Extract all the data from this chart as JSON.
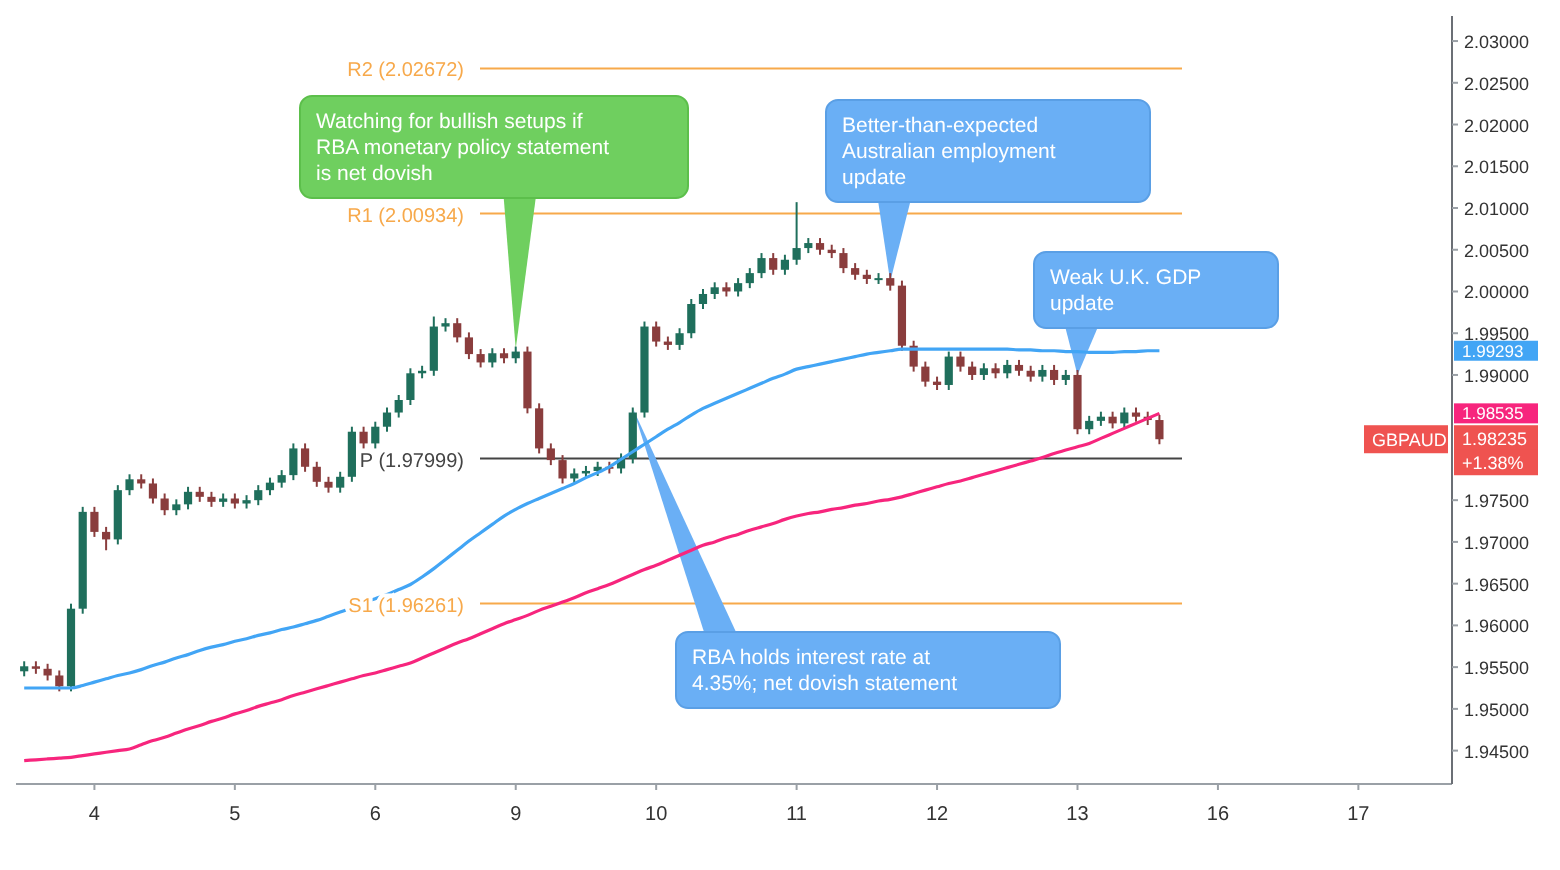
{
  "chart_data": {
    "type": "candlestick",
    "categories": [
      null,
      null,
      null,
      null,
      null,
      null,
      "4",
      null,
      null,
      null,
      null,
      null,
      null,
      null,
      null,
      null,
      null,
      null,
      "5",
      null,
      null,
      null,
      null,
      null,
      null,
      null,
      null,
      null,
      null,
      null,
      "6",
      null,
      null,
      null,
      null,
      null,
      null,
      null,
      null,
      null,
      null,
      null,
      "9",
      null,
      null,
      null,
      null,
      null,
      null,
      null,
      null,
      null,
      null,
      null,
      "10",
      null,
      null,
      null,
      null,
      null,
      null,
      null,
      null,
      null,
      null,
      null,
      "11",
      null,
      null,
      null,
      null,
      null,
      null,
      null,
      null,
      null,
      null,
      null,
      "12",
      null,
      null,
      null,
      null,
      null,
      null,
      null,
      null,
      null,
      null,
      null,
      "13",
      null,
      null,
      null,
      null,
      null,
      null,
      null,
      null,
      null,
      null,
      null,
      "16",
      null,
      null,
      null,
      null,
      null,
      null,
      null,
      null,
      null,
      null,
      null,
      "17",
      null,
      null,
      null,
      null,
      null,
      null,
      null
    ],
    "ylim": [
      1.941,
      2.033
    ],
    "yticks": [
      {
        "value": 1.945,
        "label": "1.94500"
      },
      {
        "value": 1.95,
        "label": "1.95000"
      },
      {
        "value": 1.955,
        "label": "1.95500"
      },
      {
        "value": 1.96,
        "label": "1.96000"
      },
      {
        "value": 1.965,
        "label": "1.96500"
      },
      {
        "value": 1.97,
        "label": "1.97000"
      },
      {
        "value": 1.975,
        "label": "1.97500"
      },
      {
        "value": 1.99,
        "label": "1.99000"
      },
      {
        "value": 1.995,
        "label": "1.99500"
      },
      {
        "value": 2.0,
        "label": "2.00000"
      },
      {
        "value": 2.005,
        "label": "2.00500"
      },
      {
        "value": 2.01,
        "label": "2.01000"
      },
      {
        "value": 2.015,
        "label": "2.01500"
      },
      {
        "value": 2.02,
        "label": "2.02000"
      },
      {
        "value": 2.025,
        "label": "2.02500"
      },
      {
        "value": 2.03,
        "label": "2.03000"
      }
    ],
    "grid": false,
    "series": [
      {
        "colors": [
          "#1f6f5c",
          "#8a3d3d",
          "#8a3d3d",
          "#8a3d3d",
          "#1f6f5c",
          "#1f6f5c",
          "#8a3d3d",
          "#8a3d3d",
          "#1f6f5c",
          "#1f6f5c",
          "#8a3d3d",
          "#8a3d3d",
          "#8a3d3d",
          "#1f6f5c",
          "#1f6f5c",
          "#8a3d3d",
          "#8a3d3d",
          "#1f6f5c",
          "#8a3d3d",
          "#1f6f5c",
          "#1f6f5c",
          "#1f6f5c",
          "#1f6f5c",
          "#1f6f5c",
          "#8a3d3d",
          "#8a3d3d",
          "#8a3d3d",
          "#1f6f5c",
          "#1f6f5c",
          "#8a3d3d",
          "#1f6f5c",
          "#1f6f5c",
          "#1f6f5c",
          "#1f6f5c",
          "#1f6f5c",
          "#1f6f5c",
          "#1f6f5c",
          "#8a3d3d",
          "#8a3d3d",
          "#8a3d3d",
          "#1f6f5c",
          "#8a3d3d",
          "#1f6f5c",
          "#8a3d3d",
          "#8a3d3d",
          "#8a3d3d",
          "#8a3d3d",
          "#1f6f5c",
          "#1f6f5c",
          "#1f6f5c",
          "#8a3d3d",
          "#1f6f5c",
          "#1f6f5c",
          "#1f6f5c",
          "#8a3d3d",
          "#8a3d3d",
          "#1f6f5c",
          "#1f6f5c",
          "#1f6f5c",
          "#1f6f5c",
          "#8a3d3d",
          "#1f6f5c",
          "#1f6f5c",
          "#1f6f5c",
          "#8a3d3d",
          "#1f6f5c",
          "#1f6f5c",
          "#1f6f5c",
          "#8a3d3d",
          "#8a3d3d",
          "#8a3d3d",
          "#8a3d3d",
          "#8a3d3d",
          "#1f6f5c",
          "#8a3d3d",
          "#8a3d3d",
          "#8a3d3d",
          "#8a3d3d",
          "#8a3d3d",
          "#1f6f5c",
          "#8a3d3d",
          "#8a3d3d",
          "#1f6f5c",
          "#8a3d3d",
          "#1f6f5c",
          "#8a3d3d",
          "#8a3d3d",
          "#1f6f5c",
          "#8a3d3d",
          "#1f6f5c",
          "#8a3d3d",
          "#1f6f5c",
          "#1f6f5c",
          "#8a3d3d",
          "#1f6f5c",
          "#8a3d3d",
          "#8a3d3d",
          "#8a3d3d",
          null,
          null,
          null,
          null,
          null,
          null,
          null,
          null,
          null,
          null,
          null,
          null,
          null,
          null,
          null,
          null,
          null,
          null,
          null,
          null,
          null,
          null,
          null,
          null
        ],
        "ohlc": [
          [
            1.9545,
            1.9557,
            1.9539,
            1.9551
          ],
          [
            1.9551,
            1.9557,
            1.9542,
            1.9548
          ],
          [
            1.9548,
            1.9554,
            1.9534,
            1.954
          ],
          [
            1.954,
            1.9546,
            1.9521,
            1.9527
          ],
          [
            1.9527,
            1.9626,
            1.9521,
            1.962
          ],
          [
            1.962,
            1.9742,
            1.9614,
            1.9736
          ],
          [
            1.9736,
            1.9742,
            1.9706,
            1.9712
          ],
          [
            1.9712,
            1.9718,
            1.969,
            1.9703
          ],
          [
            1.9703,
            1.9768,
            1.9697,
            1.9762
          ],
          [
            1.9762,
            1.9781,
            1.9756,
            1.9775
          ],
          [
            1.9775,
            1.9781,
            1.9764,
            1.977
          ],
          [
            1.977,
            1.9776,
            1.9746,
            1.9752
          ],
          [
            1.9752,
            1.9758,
            1.9732,
            1.9738
          ],
          [
            1.9738,
            1.9751,
            1.9732,
            1.9745
          ],
          [
            1.9745,
            1.9766,
            1.9739,
            1.976
          ],
          [
            1.976,
            1.9766,
            1.9748,
            1.9754
          ],
          [
            1.9754,
            1.976,
            1.9742,
            1.9748
          ],
          [
            1.9748,
            1.9758,
            1.9742,
            1.9752
          ],
          [
            1.9752,
            1.9758,
            1.974,
            1.9746
          ],
          [
            1.9746,
            1.9756,
            1.974,
            1.975
          ],
          [
            1.975,
            1.9768,
            1.9744,
            1.9762
          ],
          [
            1.9762,
            1.9777,
            1.9756,
            1.9771
          ],
          [
            1.9771,
            1.9786,
            1.9765,
            1.978
          ],
          [
            1.978,
            1.9818,
            1.9774,
            1.9812
          ],
          [
            1.9812,
            1.9818,
            1.9784,
            1.979
          ],
          [
            1.979,
            1.9796,
            1.9766,
            1.9772
          ],
          [
            1.9772,
            1.9778,
            1.9759,
            1.9765
          ],
          [
            1.9765,
            1.9784,
            1.9759,
            1.9778
          ],
          [
            1.9778,
            1.9838,
            1.9772,
            1.9832
          ],
          [
            1.9832,
            1.9838,
            1.9812,
            1.9818
          ],
          [
            1.9818,
            1.9844,
            1.9812,
            1.9838
          ],
          [
            1.9838,
            1.9861,
            1.9832,
            1.9855
          ],
          [
            1.9855,
            1.9876,
            1.9849,
            1.987
          ],
          [
            1.987,
            1.9908,
            1.9864,
            1.9902
          ],
          [
            1.9902,
            1.9911,
            1.9896,
            1.9905
          ],
          [
            1.9905,
            1.997,
            1.9899,
            1.9958
          ],
          [
            1.9958,
            1.9968,
            1.9952,
            1.9962
          ],
          [
            1.9962,
            1.9968,
            1.9939,
            1.9945
          ],
          [
            1.9945,
            1.9951,
            1.9919,
            1.9925
          ],
          [
            1.9925,
            1.9931,
            1.9909,
            1.9915
          ],
          [
            1.9915,
            1.9932,
            1.9909,
            1.9926
          ],
          [
            1.9926,
            1.9932,
            1.9914,
            1.992
          ],
          [
            1.992,
            1.9934,
            1.9914,
            1.9928
          ],
          [
            1.9928,
            1.9934,
            1.9854,
            1.986
          ],
          [
            1.986,
            1.9866,
            1.9806,
            1.9812
          ],
          [
            1.9812,
            1.9818,
            1.9792,
            1.9798
          ],
          [
            1.9798,
            1.9804,
            1.977,
            1.9776
          ],
          [
            1.9776,
            1.9788,
            1.977,
            1.9782
          ],
          [
            1.9782,
            1.9791,
            1.9776,
            1.9785
          ],
          [
            1.9785,
            1.9796,
            1.9779,
            1.979
          ],
          [
            1.979,
            1.9796,
            1.9782,
            1.9788
          ],
          [
            1.9788,
            1.9806,
            1.9782,
            1.98
          ],
          [
            1.98,
            1.9861,
            1.9794,
            1.9855
          ],
          [
            1.9855,
            1.9964,
            1.9849,
            1.9958
          ],
          [
            1.9958,
            1.9964,
            1.9934,
            1.994
          ],
          [
            1.994,
            1.9946,
            1.993,
            1.9936
          ],
          [
            1.9936,
            1.9956,
            1.993,
            1.995
          ],
          [
            1.995,
            1.9991,
            1.9944,
            1.9985
          ],
          [
            1.9985,
            2.0003,
            1.9979,
            1.9997
          ],
          [
            1.9997,
            2.0011,
            1.9991,
            2.0005
          ],
          [
            2.0005,
            2.0011,
            1.9994,
            2.0
          ],
          [
            2.0,
            2.0016,
            1.9994,
            2.001
          ],
          [
            2.001,
            2.0028,
            2.0004,
            2.0022
          ],
          [
            2.0022,
            2.0046,
            2.0016,
            2.004
          ],
          [
            2.004,
            2.0046,
            2.002,
            2.0026
          ],
          [
            2.0026,
            2.0044,
            2.002,
            2.0038
          ],
          [
            2.0038,
            2.0107,
            2.0032,
            2.0052
          ],
          [
            2.0052,
            2.0064,
            2.0046,
            2.0058
          ],
          [
            2.0058,
            2.0064,
            2.0044,
            2.005
          ],
          [
            2.005,
            2.0056,
            2.004,
            2.0046
          ],
          [
            2.0046,
            2.0052,
            2.0022,
            2.0028
          ],
          [
            2.0028,
            2.0034,
            2.0014,
            2.002
          ],
          [
            2.002,
            2.0026,
            2.0009,
            2.0015
          ],
          [
            2.0015,
            2.0022,
            2.0009,
            2.0016
          ],
          [
            2.0016,
            2.0022,
            2.0001,
            2.0007
          ],
          [
            2.0007,
            2.0013,
            1.9929,
            1.9935
          ],
          [
            1.9935,
            1.9941,
            1.9904,
            1.991
          ],
          [
            1.991,
            1.9916,
            1.9886,
            1.9892
          ],
          [
            1.9892,
            1.9898,
            1.9882,
            1.9888
          ],
          [
            1.9888,
            1.9928,
            1.9882,
            1.9922
          ],
          [
            1.9922,
            1.9928,
            1.9904,
            1.991
          ],
          [
            1.991,
            1.9916,
            1.9894,
            1.99
          ],
          [
            1.99,
            1.9914,
            1.9894,
            1.9908
          ],
          [
            1.9908,
            1.9914,
            1.9896,
            1.9902
          ],
          [
            1.9902,
            1.9918,
            1.9896,
            1.9912
          ],
          [
            1.9912,
            1.9918,
            1.9899,
            1.9905
          ],
          [
            1.9905,
            1.9911,
            1.9892,
            1.9898
          ],
          [
            1.9898,
            1.9912,
            1.9892,
            1.9906
          ],
          [
            1.9906,
            1.9912,
            1.9888,
            1.9894
          ],
          [
            1.9894,
            1.9906,
            1.9888,
            1.99
          ],
          [
            1.99,
            1.9906,
            1.9829,
            1.9835
          ],
          [
            1.9835,
            1.9851,
            1.9829,
            1.9845
          ],
          [
            1.9845,
            1.9856,
            1.9839,
            1.985
          ],
          [
            1.985,
            1.9856,
            1.9836,
            1.9842
          ],
          [
            1.9842,
            1.9861,
            1.9836,
            1.9855
          ],
          [
            1.9855,
            1.9861,
            1.9844,
            1.985
          ],
          [
            1.985,
            1.9856,
            1.984,
            1.9846
          ],
          [
            1.9846,
            1.9852,
            1.9817,
            1.9823
          ],
          null,
          null,
          null,
          null,
          null,
          null,
          null,
          null,
          null,
          null,
          null,
          null,
          null,
          null,
          null,
          null,
          null,
          null,
          null,
          null,
          null,
          null,
          null,
          null
        ]
      },
      {
        "type": "line",
        "color": "#42a5f5",
        "values": [
          1.9525,
          1.9525,
          1.9525,
          1.9525,
          1.9525,
          1.9528,
          1.9532,
          1.9536,
          1.954,
          1.9543,
          1.9547,
          1.9552,
          1.9556,
          1.9561,
          1.9565,
          1.957,
          1.9574,
          1.9577,
          1.9581,
          1.9584,
          1.9588,
          1.9591,
          1.9595,
          1.9598,
          1.9602,
          1.9606,
          1.9611,
          1.9616,
          1.9621,
          1.9627,
          1.9632,
          1.9637,
          1.9643,
          1.9649,
          1.9658,
          1.9668,
          1.9679,
          1.969,
          1.9701,
          1.9711,
          1.9721,
          1.9731,
          1.9739,
          1.9746,
          1.9752,
          1.9758,
          1.9764,
          1.977,
          1.9777,
          1.9783,
          1.979,
          1.9799,
          1.9808,
          1.9817,
          1.9826,
          1.9835,
          1.9843,
          1.9852,
          1.986,
          1.9866,
          1.9872,
          1.9878,
          1.9884,
          1.989,
          1.9896,
          1.9901,
          1.9907,
          1.991,
          1.9913,
          1.9916,
          1.9919,
          1.9922,
          1.9925,
          1.9927,
          1.9929,
          1.9931,
          1.9931,
          1.9931,
          1.9931,
          1.9931,
          1.9931,
          1.9931,
          1.9931,
          1.9931,
          1.9931,
          1.993,
          1.993,
          1.9929,
          1.9929,
          1.9928,
          1.9928,
          1.9927,
          1.9927,
          1.9927,
          1.9928,
          1.9928,
          1.9929,
          1.9929,
          null,
          null,
          null,
          null,
          null,
          null,
          null,
          null,
          null,
          null,
          null,
          null,
          null,
          null,
          null,
          null,
          null,
          null,
          null,
          null,
          null,
          null,
          null,
          null
        ]
      },
      {
        "type": "line",
        "color": "#f7257d",
        "values": [
          1.9438,
          1.9439,
          1.944,
          1.9441,
          1.9442,
          1.9444,
          1.9446,
          1.9448,
          1.945,
          1.9452,
          1.9457,
          1.9462,
          1.9466,
          1.9471,
          1.9476,
          1.948,
          1.9485,
          1.9489,
          1.9494,
          1.9498,
          1.9503,
          1.9507,
          1.9511,
          1.9516,
          1.952,
          1.9524,
          1.9528,
          1.9532,
          1.9536,
          1.954,
          1.9543,
          1.9547,
          1.9551,
          1.9555,
          1.9561,
          1.9567,
          1.9573,
          1.9579,
          1.9584,
          1.959,
          1.9596,
          1.9602,
          1.9607,
          1.9612,
          1.9618,
          1.9623,
          1.9628,
          1.9633,
          1.9639,
          1.9644,
          1.9649,
          1.9655,
          1.9661,
          1.9667,
          1.9672,
          1.9678,
          1.9684,
          1.969,
          1.9696,
          1.97,
          1.9705,
          1.9709,
          1.9714,
          1.9718,
          1.9722,
          1.9727,
          1.9731,
          1.9734,
          1.9736,
          1.9739,
          1.9741,
          1.9744,
          1.9746,
          1.9749,
          1.9751,
          1.9754,
          1.9758,
          1.9762,
          1.9766,
          1.977,
          1.9773,
          1.9777,
          1.9781,
          1.9785,
          1.9789,
          1.9793,
          1.9797,
          1.9801,
          1.9806,
          1.981,
          1.9814,
          1.9818,
          1.9824,
          1.983,
          1.9836,
          1.9842,
          1.9848,
          1.9854,
          null,
          null,
          null,
          null,
          null,
          null,
          null,
          null,
          null,
          null,
          null,
          null,
          null,
          null,
          null,
          null,
          null,
          null,
          null,
          null,
          null,
          null,
          null,
          null
        ]
      }
    ],
    "ref_lines": [
      {
        "axis": "y",
        "value": 2.02672,
        "label": "R2 (2.02672)",
        "color": "#f7a94b"
      },
      {
        "axis": "y",
        "value": 2.00934,
        "label": "R1 (2.00934)",
        "color": "#f7a94b"
      },
      {
        "axis": "y",
        "value": 1.97999,
        "label": "P (1.97999)",
        "color": "#444444"
      },
      {
        "axis": "y",
        "value": 1.96261,
        "label": "S1 (1.96261)",
        "color": "#f7a94b"
      }
    ],
    "annotations": [
      {
        "text": "Watching for bullish setups if RBA monetary policy statement is net dovish",
        "x": "9",
        "y": 1.9931
      },
      "Better-than-expected Australian employment update",
      "Weak U.K. GDP update",
      "RBA holds interest rate at 4.35%; net dovish statement",
      "1.99293",
      "1.98535",
      "GBPAUD",
      "1.98235",
      "+1.38%"
    ]
  }
}
